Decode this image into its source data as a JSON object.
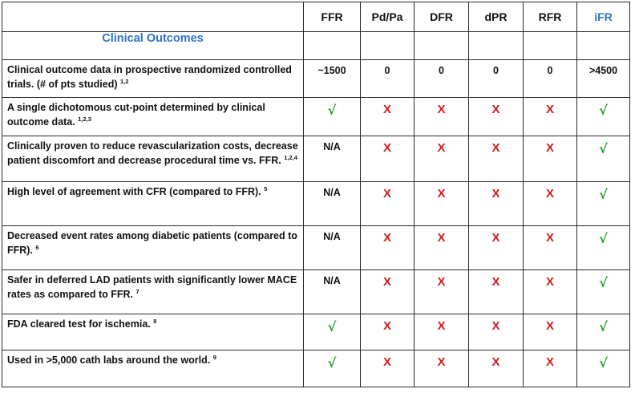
{
  "columns": [
    "FFR",
    "Pd/Pa",
    "DFR",
    "dPR",
    "RFR",
    "iFR"
  ],
  "section_title": "Clinical Outcomes",
  "rows": [
    {
      "text": "Clinical outcome data in prospective randomized controlled trials. (# of pts studied)",
      "refs": "1,2",
      "values": [
        "~1500",
        "0",
        "0",
        "0",
        "0",
        ">4500"
      ]
    },
    {
      "text": "A single dichotomous cut-point determined by clinical outcome data.",
      "refs": "1,2,3",
      "values": [
        "√",
        "X",
        "X",
        "X",
        "X",
        "√"
      ]
    },
    {
      "text": "Clinically proven to reduce revascularization costs, decrease patient discomfort and decrease procedural time vs. FFR.",
      "refs": "1,2,4",
      "values": [
        "N/A",
        "X",
        "X",
        "X",
        "X",
        "√"
      ]
    },
    {
      "text": "High level of agreement with CFR (compared to FFR).",
      "refs": "5",
      "values": [
        "N/A",
        "X",
        "X",
        "X",
        "X",
        "√"
      ]
    },
    {
      "text": "Decreased event rates among diabetic patients (compared to FFR).",
      "refs": "6",
      "values": [
        "N/A",
        "X",
        "X",
        "X",
        "X",
        "√"
      ]
    },
    {
      "text": "Safer in deferred LAD patients with significantly lower MACE rates as compared to FFR.",
      "refs": "7",
      "values": [
        "N/A",
        "X",
        "X",
        "X",
        "X",
        "√"
      ]
    },
    {
      "text": "FDA cleared test for ischemia.",
      "refs": "8",
      "values": [
        "√",
        "X",
        "X",
        "X",
        "X",
        "√"
      ]
    },
    {
      "text": "Used in >5,000 cath labs around the world.",
      "refs": "9",
      "values": [
        "√",
        "X",
        "X",
        "X",
        "X",
        "√"
      ]
    }
  ],
  "colors": {
    "check": "#2e9e32",
    "cross": "#d11c1c",
    "accent": "#2f74c0",
    "border": "#2a2a2a"
  }
}
